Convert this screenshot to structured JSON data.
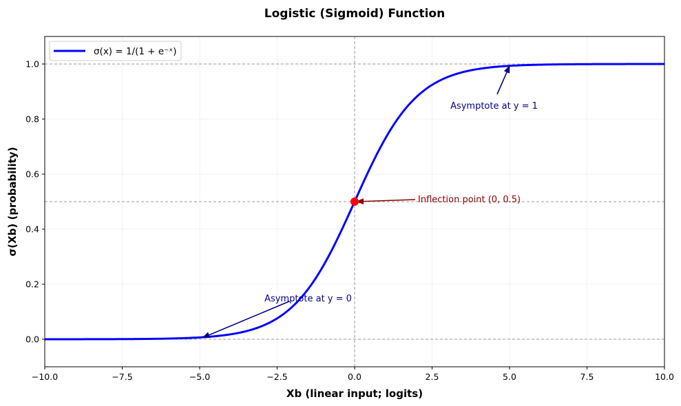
{
  "chart_data": {
    "type": "line",
    "title": "Logistic (Sigmoid) Function",
    "xlabel": "Xb (linear input; logits)",
    "ylabel": "σ(Xb) (probability)",
    "xlim": [
      -10,
      10
    ],
    "ylim": [
      -0.1,
      1.1
    ],
    "xticks": [
      -10.0,
      -7.5,
      -5.0,
      -2.5,
      0.0,
      2.5,
      5.0,
      7.5,
      10.0
    ],
    "xtick_labels": [
      "−10.0",
      "−7.5",
      "−5.0",
      "−2.5",
      "0.0",
      "2.5",
      "5.0",
      "7.5",
      "10.0"
    ],
    "yticks": [
      0.0,
      0.2,
      0.4,
      0.6,
      0.8,
      1.0
    ],
    "ytick_labels": [
      "0.0",
      "0.2",
      "0.4",
      "0.6",
      "0.8",
      "1.0"
    ],
    "grid": true,
    "legend_position": "upper left",
    "series": [
      {
        "name": "σ(x) = 1/(1 + e⁻ˣ)",
        "color": "#0000ff",
        "function": "1/(1+exp(-x))",
        "x": [
          -10,
          -8,
          -6,
          -5,
          -4,
          -3,
          -2,
          -1,
          0,
          1,
          2,
          3,
          4,
          5,
          6,
          8,
          10
        ],
        "y": [
          0.0,
          0.0003,
          0.0025,
          0.0067,
          0.018,
          0.0474,
          0.1192,
          0.2689,
          0.5,
          0.7311,
          0.8808,
          0.9526,
          0.982,
          0.9933,
          0.9975,
          0.9997,
          1.0
        ]
      }
    ],
    "reference_lines": [
      {
        "type": "horizontal",
        "y": 0.0,
        "style": "dashed",
        "color": "#999999"
      },
      {
        "type": "horizontal",
        "y": 0.5,
        "style": "dashed",
        "color": "#999999"
      },
      {
        "type": "horizontal",
        "y": 1.0,
        "style": "dashed",
        "color": "#999999"
      },
      {
        "type": "vertical",
        "x": 0.0,
        "style": "dashed",
        "color": "#999999"
      }
    ],
    "points": [
      {
        "x": 0,
        "y": 0.5,
        "color": "#ff0000",
        "label": "Inflection point"
      }
    ],
    "annotations": [
      {
        "text": "Inflection point (0, 0.5)",
        "xy": [
          0,
          0.5
        ],
        "xytext": [
          2,
          0.5
        ],
        "color": "#8b0000"
      },
      {
        "text": "Asymptote at y = 1",
        "xy": [
          5,
          0.993
        ],
        "xytext": [
          3,
          0.85
        ],
        "color": "#00008b"
      },
      {
        "text": "Asymptote at y = 0",
        "xy": [
          -5,
          0.007
        ],
        "xytext": [
          -3,
          0.15
        ],
        "color": "#00008b"
      }
    ]
  },
  "legend": {
    "label": "σ(x) = 1/(1 + e⁻ˣ)"
  }
}
